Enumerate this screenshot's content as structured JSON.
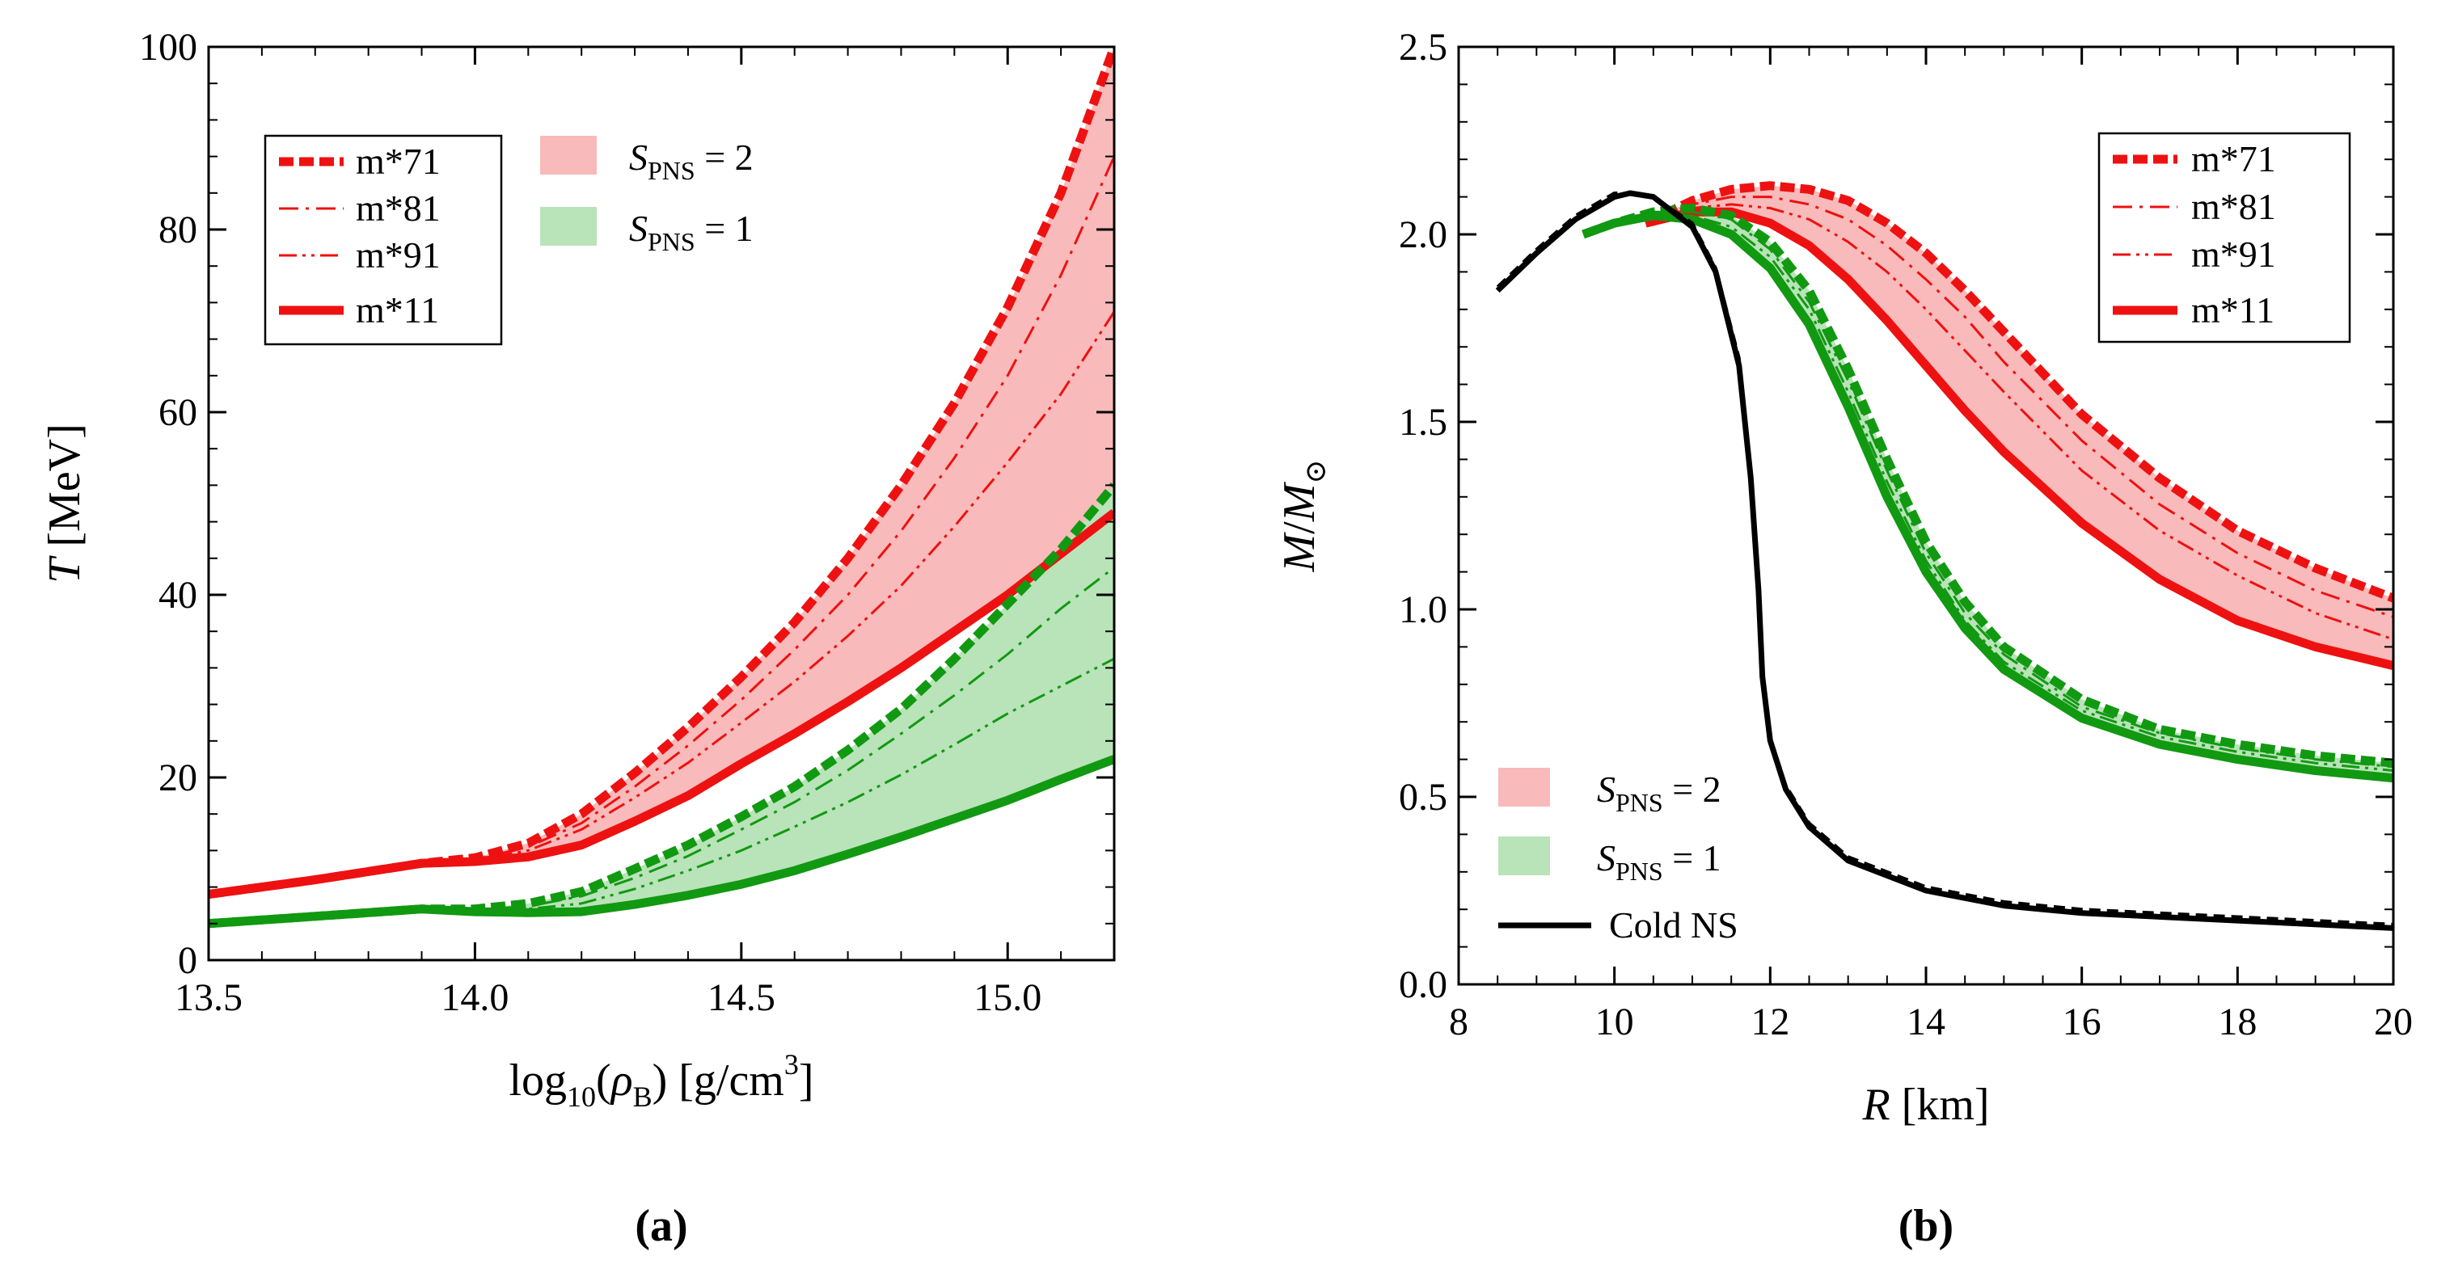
{
  "colors": {
    "red": "#ee1111",
    "green": "#119911",
    "red_band": "#f8baba",
    "green_band": "#b9e3b9",
    "black": "#000000"
  },
  "chart_data": [
    {
      "type": "line",
      "panel_label": "(a)",
      "xlabel": {
        "main": "log",
        "sub": "10",
        "open": "(",
        "sym": "ρ",
        "symsub": "B",
        "close": ") [g/cm",
        "sup": "3",
        "end": "]"
      },
      "ylabel": {
        "sym": "T",
        "unit": " [MeV]"
      },
      "xlim": [
        13.5,
        15.2
      ],
      "ylim": [
        0,
        100
      ],
      "xticks": [
        "13.5",
        "14.0",
        "14.5",
        "15.0"
      ],
      "yticks": [
        "0",
        "20",
        "40",
        "60",
        "80",
        "100"
      ],
      "grid": false,
      "legend_placement": "top-left",
      "legend": [
        {
          "label": "m*71",
          "style": "thick-dashed"
        },
        {
          "label": "m*81",
          "style": "dash-dot"
        },
        {
          "label": "m*91",
          "style": "dash-dot-dot"
        },
        {
          "label": "m*11",
          "style": "thick-solid"
        }
      ],
      "band_legend": [
        {
          "sym": "S",
          "sub": "PNS",
          "rest": " = 2",
          "color": "red_band"
        },
        {
          "sym": "S",
          "sub": "PNS",
          "rest": " = 1",
          "color": "green_band"
        }
      ],
      "x": [
        13.5,
        13.7,
        13.9,
        14.0,
        14.1,
        14.2,
        14.3,
        14.4,
        14.5,
        14.6,
        14.7,
        14.8,
        14.9,
        15.0,
        15.1,
        15.2
      ],
      "series": [
        {
          "label": "m*71",
          "group": "S_PNS = 2",
          "y": [
            7.2,
            8.8,
            10.6,
            11.2,
            12.8,
            16.0,
            20.5,
            25.5,
            31.0,
            37.0,
            44.0,
            52.0,
            61.0,
            71.5,
            84.0,
            100.0
          ]
        },
        {
          "label": "m*81",
          "group": "S_PNS = 2",
          "y": [
            7.2,
            8.8,
            10.6,
            11.0,
            12.4,
            15.0,
            19.0,
            23.5,
            28.5,
            34.0,
            40.0,
            47.0,
            55.0,
            64.0,
            75.0,
            88.0
          ]
        },
        {
          "label": "m*91",
          "group": "S_PNS = 2",
          "y": [
            7.2,
            8.8,
            10.6,
            10.9,
            12.0,
            14.3,
            17.8,
            21.6,
            26.0,
            30.5,
            35.5,
            41.0,
            47.5,
            54.5,
            62.0,
            71.0
          ]
        },
        {
          "label": "m*11",
          "group": "S_PNS = 2",
          "y": [
            7.2,
            8.8,
            10.6,
            10.8,
            11.3,
            12.6,
            15.2,
            18.0,
            21.5,
            24.8,
            28.3,
            32.0,
            36.0,
            40.0,
            44.5,
            49.0
          ]
        },
        {
          "label": "m*71",
          "group": "S_PNS = 1",
          "y": [
            4.0,
            4.8,
            5.6,
            5.6,
            6.2,
            7.5,
            10.0,
            12.6,
            15.7,
            19.0,
            23.0,
            27.5,
            33.0,
            39.0,
            45.0,
            52.0
          ]
        },
        {
          "label": "m*81",
          "group": "S_PNS = 1",
          "y": [
            4.0,
            4.8,
            5.6,
            5.5,
            5.9,
            7.0,
            9.0,
            11.4,
            14.3,
            17.3,
            20.8,
            24.8,
            29.0,
            33.5,
            38.5,
            43.0
          ]
        },
        {
          "label": "m*91",
          "group": "S_PNS = 1",
          "y": [
            4.0,
            4.8,
            5.6,
            5.4,
            5.6,
            6.2,
            7.8,
            9.8,
            12.0,
            14.6,
            17.3,
            20.3,
            23.6,
            27.0,
            30.0,
            33.0
          ]
        },
        {
          "label": "m*11",
          "group": "S_PNS = 1",
          "y": [
            4.0,
            4.8,
            5.6,
            5.3,
            5.2,
            5.3,
            6.1,
            7.1,
            8.3,
            9.8,
            11.6,
            13.5,
            15.5,
            17.5,
            19.8,
            22.0
          ]
        }
      ]
    },
    {
      "type": "line",
      "panel_label": "(b)",
      "xlabel": {
        "sym": "R",
        "unit": " [km]"
      },
      "ylabel": {
        "sym": "M",
        "slash": "/",
        "sym2": "M",
        "sub": "⊙"
      },
      "xlim": [
        8,
        20
      ],
      "ylim": [
        0.0,
        2.5
      ],
      "xticks": [
        "8",
        "10",
        "12",
        "14",
        "16",
        "18",
        "20"
      ],
      "yticks": [
        "0.0",
        "0.5",
        "1.0",
        "1.5",
        "2.0",
        "2.5"
      ],
      "grid": false,
      "legend_placement": "top-right",
      "legend": [
        {
          "label": "m*71",
          "style": "thick-dashed"
        },
        {
          "label": "m*81",
          "style": "dash-dot"
        },
        {
          "label": "m*91",
          "style": "dash-dot-dot"
        },
        {
          "label": "m*11",
          "style": "thick-solid"
        }
      ],
      "band_legend_placement": "bottom-left",
      "band_legend": [
        {
          "sym": "S",
          "sub": "PNS",
          "rest": " = 2",
          "color": "red_band"
        },
        {
          "sym": "S",
          "sub": "PNS",
          "rest": " = 1",
          "color": "green_band"
        }
      ],
      "extra_legend": {
        "label": "Cold NS",
        "color": "black"
      },
      "series": [
        {
          "label": "m*71",
          "group": "S_PNS = 2",
          "x": [
            10.4,
            11.0,
            11.5,
            12.0,
            12.5,
            13.0,
            13.5,
            14.0,
            14.5,
            15.0,
            16.0,
            17.0,
            18.0,
            19.0,
            20.0
          ],
          "y": [
            2.03,
            2.09,
            2.12,
            2.13,
            2.12,
            2.09,
            2.03,
            1.95,
            1.85,
            1.74,
            1.52,
            1.35,
            1.21,
            1.11,
            1.03
          ]
        },
        {
          "label": "m*81",
          "group": "S_PNS = 2",
          "x": [
            10.4,
            11.0,
            11.5,
            12.0,
            12.5,
            13.0,
            13.5,
            14.0,
            14.5,
            15.0,
            16.0,
            17.0,
            18.0,
            19.0,
            20.0
          ],
          "y": [
            2.03,
            2.08,
            2.1,
            2.1,
            2.08,
            2.04,
            1.97,
            1.88,
            1.78,
            1.66,
            1.45,
            1.28,
            1.15,
            1.05,
            0.98
          ]
        },
        {
          "label": "m*91",
          "group": "S_PNS = 2",
          "x": [
            10.4,
            11.0,
            11.5,
            12.0,
            12.5,
            13.0,
            13.5,
            14.0,
            14.5,
            15.0,
            16.0,
            17.0,
            18.0,
            19.0,
            20.0
          ],
          "y": [
            2.03,
            2.07,
            2.08,
            2.07,
            2.04,
            1.98,
            1.9,
            1.8,
            1.69,
            1.58,
            1.37,
            1.21,
            1.09,
            0.99,
            0.92
          ]
        },
        {
          "label": "m*11",
          "group": "S_PNS = 2",
          "x": [
            10.4,
            11.0,
            11.5,
            12.0,
            12.5,
            13.0,
            13.5,
            14.0,
            14.5,
            15.0,
            16.0,
            17.0,
            18.0,
            19.0,
            20.0
          ],
          "y": [
            2.03,
            2.06,
            2.06,
            2.03,
            1.97,
            1.88,
            1.77,
            1.65,
            1.53,
            1.42,
            1.23,
            1.08,
            0.97,
            0.9,
            0.85
          ]
        },
        {
          "label": "m*71",
          "group": "S_PNS = 1",
          "x": [
            9.6,
            10.0,
            10.5,
            11.0,
            11.5,
            12.0,
            12.5,
            13.0,
            13.5,
            14.0,
            14.5,
            15.0,
            16.0,
            17.0,
            18.0,
            19.0,
            20.0
          ],
          "y": [
            2.0,
            2.03,
            2.06,
            2.07,
            2.05,
            1.98,
            1.85,
            1.64,
            1.4,
            1.18,
            1.02,
            0.9,
            0.76,
            0.68,
            0.64,
            0.61,
            0.59
          ]
        },
        {
          "label": "m*81",
          "group": "S_PNS = 1",
          "x": [
            9.6,
            10.0,
            10.5,
            11.0,
            11.5,
            12.0,
            12.5,
            13.0,
            13.5,
            14.0,
            14.5,
            15.0,
            16.0,
            17.0,
            18.0,
            19.0,
            20.0
          ],
          "y": [
            2.0,
            2.03,
            2.06,
            2.06,
            2.04,
            1.96,
            1.82,
            1.61,
            1.37,
            1.15,
            0.99,
            0.88,
            0.74,
            0.67,
            0.63,
            0.6,
            0.58
          ]
        },
        {
          "label": "m*91",
          "group": "S_PNS = 1",
          "x": [
            9.6,
            10.0,
            10.5,
            11.0,
            11.5,
            12.0,
            12.5,
            13.0,
            13.5,
            14.0,
            14.5,
            15.0,
            16.0,
            17.0,
            18.0,
            19.0,
            20.0
          ],
          "y": [
            2.0,
            2.03,
            2.05,
            2.05,
            2.02,
            1.94,
            1.8,
            1.58,
            1.34,
            1.13,
            0.97,
            0.86,
            0.73,
            0.66,
            0.62,
            0.59,
            0.57
          ]
        },
        {
          "label": "m*11",
          "group": "S_PNS = 1",
          "x": [
            9.6,
            10.0,
            10.5,
            11.0,
            11.5,
            12.0,
            12.5,
            13.0,
            13.5,
            14.0,
            14.5,
            15.0,
            16.0,
            17.0,
            18.0,
            19.0,
            20.0
          ],
          "y": [
            2.0,
            2.03,
            2.05,
            2.04,
            2.0,
            1.91,
            1.76,
            1.54,
            1.3,
            1.1,
            0.95,
            0.84,
            0.71,
            0.64,
            0.6,
            0.57,
            0.55
          ]
        },
        {
          "label": "Cold NS",
          "x": [
            8.5,
            9.0,
            9.5,
            10.0,
            10.2,
            10.5,
            11.0,
            11.3,
            11.6,
            11.75,
            11.85,
            11.9,
            12.0,
            12.2,
            12.5,
            13.0,
            14.0,
            15.0,
            16.0,
            18.0,
            20.0
          ],
          "y": [
            1.85,
            1.95,
            2.04,
            2.1,
            2.11,
            2.1,
            2.02,
            1.9,
            1.65,
            1.35,
            1.05,
            0.82,
            0.65,
            0.52,
            0.42,
            0.33,
            0.25,
            0.21,
            0.19,
            0.17,
            0.15
          ]
        },
        {
          "label": "Cold NS",
          "x": [
            8.5,
            9.0,
            9.5,
            10.0,
            10.2,
            10.5,
            11.0,
            11.3,
            11.6,
            11.75,
            11.85,
            11.9,
            12.0,
            12.2,
            12.5,
            13.0,
            14.0,
            15.0,
            16.0,
            18.0,
            20.0
          ],
          "y": [
            1.86,
            1.96,
            2.05,
            2.11,
            2.11,
            2.1,
            2.03,
            1.91,
            1.67,
            1.37,
            1.07,
            0.84,
            0.66,
            0.53,
            0.43,
            0.34,
            0.26,
            0.22,
            0.2,
            0.18,
            0.16
          ],
          "style": "dashed"
        }
      ]
    }
  ]
}
